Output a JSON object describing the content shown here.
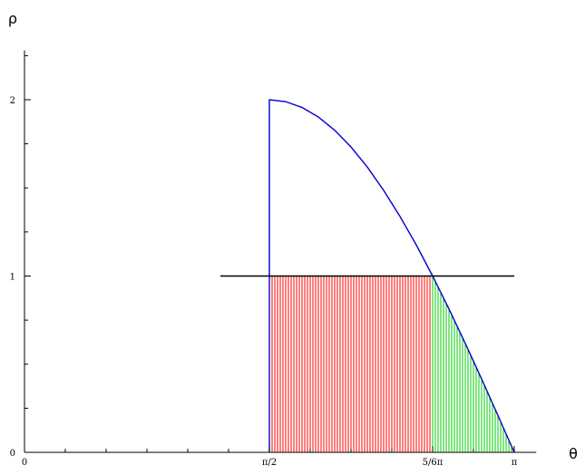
{
  "chart_data": {
    "type": "area",
    "title": "",
    "xlabel": "θ",
    "ylabel": "ρ",
    "xlim": [
      0,
      3.3
    ],
    "ylim": [
      0,
      2.3
    ],
    "x_ticks": [
      {
        "value": 0,
        "label": "0"
      },
      {
        "value": 1.5708,
        "label": "π/2"
      },
      {
        "value": 2.618,
        "label": "5/6π"
      },
      {
        "value": 3.1416,
        "label": "π"
      }
    ],
    "y_ticks": [
      {
        "value": 0,
        "label": "0"
      },
      {
        "value": 1,
        "label": "1"
      },
      {
        "value": 2,
        "label": "2"
      }
    ],
    "grid": false,
    "series": [
      {
        "kind": "curve",
        "color": "#0000cc",
        "x": [
          1.5708,
          1.5708,
          1.6755,
          1.7802,
          1.885,
          1.9897,
          2.0944,
          2.1991,
          2.3038,
          2.4086,
          2.5133,
          2.618,
          2.7227,
          2.8274,
          2.9322,
          3.0369,
          3.1416
        ],
        "y": [
          0,
          2,
          1.989,
          1.956,
          1.902,
          1.827,
          1.732,
          1.618,
          1.486,
          1.338,
          1.176,
          1.0,
          0.813,
          0.618,
          0.416,
          0.209,
          0
        ]
      },
      {
        "kind": "line",
        "color": "#000000",
        "x": [
          1.2566,
          3.1416
        ],
        "y": [
          1,
          1
        ]
      },
      {
        "kind": "region",
        "color": "#ff0000",
        "x": [
          1.5708,
          2.618
        ],
        "lower": 0,
        "upper": 1
      },
      {
        "kind": "region",
        "color": "#00cc00",
        "x": [
          2.618,
          3.1416
        ],
        "lower": 0,
        "upper": "curve"
      }
    ]
  }
}
